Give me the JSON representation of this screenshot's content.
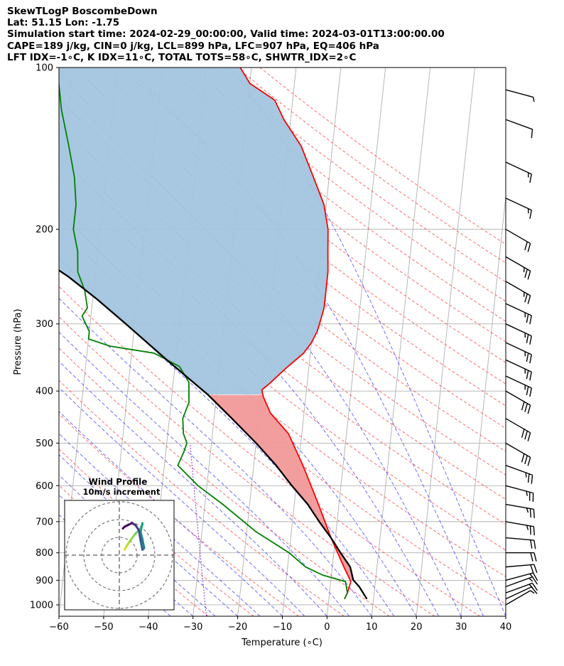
{
  "header": {
    "line1": "SkewTLogP BoscombeDown",
    "line2": "Lat: 51.15   Lon: -1.75",
    "line3": "Simulation start time: 2024-02-29_00:00:00, Valid time: 2024-03-01T13:00:00.00",
    "line4": "CAPE=189 j/kg, CIN=0 j/kg, LCL=899 hPa, LFC=907 hPa, EQ=406 hPa",
    "line5": "LFT IDX=-1∘C, K IDX=11∘C, TOTAL TOTS=58∘C, SHWTR_IDX=2∘C"
  },
  "chart_data": {
    "type": "line",
    "xlabel": "Temperature (∘C)",
    "ylabel": "Pressure (hPa)",
    "xlim": [
      -60,
      40
    ],
    "ylim": [
      1050,
      100
    ],
    "yscale": "log",
    "skew": true,
    "grid": true,
    "xticks": [
      -60,
      -50,
      -40,
      -30,
      -20,
      -10,
      0,
      10,
      20,
      30,
      40
    ],
    "yticks": [
      100,
      200,
      300,
      400,
      500,
      600,
      700,
      800,
      900,
      1000
    ],
    "series": [
      {
        "role": "temperature",
        "color": "#ff0000",
        "points": [
          [
            3.5,
            975
          ],
          [
            4,
            950
          ],
          [
            4.5,
            905
          ],
          [
            2.6,
            850
          ],
          [
            -1,
            750
          ],
          [
            -4.6,
            650
          ],
          [
            -9,
            550
          ],
          [
            -13,
            480
          ],
          [
            -17.5,
            440
          ],
          [
            -19.5,
            410
          ],
          [
            -20,
            398
          ],
          [
            -18.5,
            388
          ],
          [
            -15,
            362
          ],
          [
            -11.5,
            340
          ],
          [
            -10,
            325
          ],
          [
            -9,
            310
          ],
          [
            -8.5,
            295
          ],
          [
            -8,
            280
          ],
          [
            -8,
            240
          ],
          [
            -8.5,
            220
          ],
          [
            -9,
            200
          ],
          [
            -10.5,
            180
          ],
          [
            -13.5,
            160
          ],
          [
            -17,
            140
          ],
          [
            -21.5,
            125
          ],
          [
            -24,
            115
          ],
          [
            -30,
            107
          ],
          [
            -32.5,
            100
          ]
        ]
      },
      {
        "role": "dewpoint",
        "color": "#008000",
        "points": [
          [
            3.5,
            975
          ],
          [
            4,
            950
          ],
          [
            3.3,
            905
          ],
          [
            -2,
            880
          ],
          [
            -6,
            850
          ],
          [
            -10,
            800
          ],
          [
            -18,
            730
          ],
          [
            -26,
            650
          ],
          [
            -32,
            600
          ],
          [
            -37,
            550
          ],
          [
            -36,
            520
          ],
          [
            -35.5,
            500
          ],
          [
            -36.5,
            480
          ],
          [
            -37,
            450
          ],
          [
            -36,
            420
          ],
          [
            -36.5,
            385
          ],
          [
            -39,
            360
          ],
          [
            -45,
            340
          ],
          [
            -55,
            330
          ],
          [
            -60,
            320
          ],
          [
            -60,
            310
          ],
          [
            -62,
            290
          ],
          [
            -61,
            280
          ],
          [
            -62,
            260
          ],
          [
            -64,
            240
          ],
          [
            -64.5,
            220
          ],
          [
            -66,
            200
          ],
          [
            -66,
            180
          ],
          [
            -67,
            160
          ],
          [
            -69,
            140
          ],
          [
            -71.5,
            120
          ],
          [
            -73.5,
            100
          ]
        ]
      },
      {
        "role": "parcel",
        "color": "#000000",
        "points": [
          [
            8.5,
            975
          ],
          [
            6.5,
            925
          ],
          [
            5.0,
            899
          ],
          [
            4,
            850
          ],
          [
            1.5,
            800
          ],
          [
            -1,
            750
          ],
          [
            -4,
            700
          ],
          [
            -7,
            650
          ],
          [
            -11,
            600
          ],
          [
            -15,
            550
          ],
          [
            -20,
            500
          ],
          [
            -26,
            450
          ],
          [
            -32,
            406
          ],
          [
            -33,
            400
          ],
          [
            -42,
            350
          ],
          [
            -52,
            300
          ],
          [
            -59,
            270
          ],
          [
            -66,
            245
          ],
          [
            -75,
            220
          ],
          [
            -83,
            200
          ],
          [
            -95,
            175
          ],
          [
            -108,
            150
          ],
          [
            -120,
            130
          ],
          [
            -135,
            110
          ],
          [
            -146,
            100
          ]
        ]
      }
    ],
    "cape_region": {
      "color": "#a2c5de",
      "from_hpa": 406,
      "to_hpa": 100
    },
    "cin_region": {
      "color": "#f29999",
      "from_hpa": 899,
      "to_hpa": 406
    },
    "wind_barbs": [
      {
        "p": 1000,
        "dir": 240,
        "kt": 8
      },
      {
        "p": 975,
        "dir": 245,
        "kt": 12
      },
      {
        "p": 950,
        "dir": 250,
        "kt": 15
      },
      {
        "p": 925,
        "dir": 250,
        "kt": 15
      },
      {
        "p": 900,
        "dir": 255,
        "kt": 18
      },
      {
        "p": 850,
        "dir": 265,
        "kt": 20
      },
      {
        "p": 800,
        "dir": 270,
        "kt": 20
      },
      {
        "p": 750,
        "dir": 275,
        "kt": 22
      },
      {
        "p": 700,
        "dir": 280,
        "kt": 25
      },
      {
        "p": 650,
        "dir": 280,
        "kt": 25
      },
      {
        "p": 600,
        "dir": 285,
        "kt": 25
      },
      {
        "p": 550,
        "dir": 290,
        "kt": 28
      },
      {
        "p": 500,
        "dir": 300,
        "kt": 30
      },
      {
        "p": 450,
        "dir": 300,
        "kt": 30
      },
      {
        "p": 400,
        "dir": 300,
        "kt": 30
      },
      {
        "p": 375,
        "dir": 295,
        "kt": 28
      },
      {
        "p": 350,
        "dir": 295,
        "kt": 25
      },
      {
        "p": 325,
        "dir": 295,
        "kt": 25
      },
      {
        "p": 300,
        "dir": 295,
        "kt": 25
      },
      {
        "p": 275,
        "dir": 295,
        "kt": 25
      },
      {
        "p": 250,
        "dir": 300,
        "kt": 25
      },
      {
        "p": 225,
        "dir": 300,
        "kt": 25
      },
      {
        "p": 200,
        "dir": 300,
        "kt": 22
      },
      {
        "p": 175,
        "dir": 295,
        "kt": 18
      },
      {
        "p": 150,
        "dir": 295,
        "kt": 15
      },
      {
        "p": 125,
        "dir": 290,
        "kt": 12
      },
      {
        "p": 110,
        "dir": 285,
        "kt": 8
      }
    ],
    "hodograph": {
      "title_line1": "Wind Profile",
      "title_line2": "10m/s increment",
      "ring_step_ms": 10,
      "rings": 3,
      "points": [
        [
          3,
          3
        ],
        [
          4,
          5
        ],
        [
          6,
          8
        ],
        [
          9,
          12
        ],
        [
          12,
          15
        ],
        [
          13,
          17
        ],
        [
          13,
          18
        ],
        [
          12,
          13
        ],
        [
          13,
          9
        ],
        [
          14,
          4
        ],
        [
          13,
          3
        ],
        [
          12,
          8
        ],
        [
          11,
          14
        ],
        [
          9,
          17
        ],
        [
          7,
          18
        ],
        [
          5,
          17
        ],
        [
          3,
          16
        ],
        [
          2,
          15
        ]
      ]
    }
  }
}
